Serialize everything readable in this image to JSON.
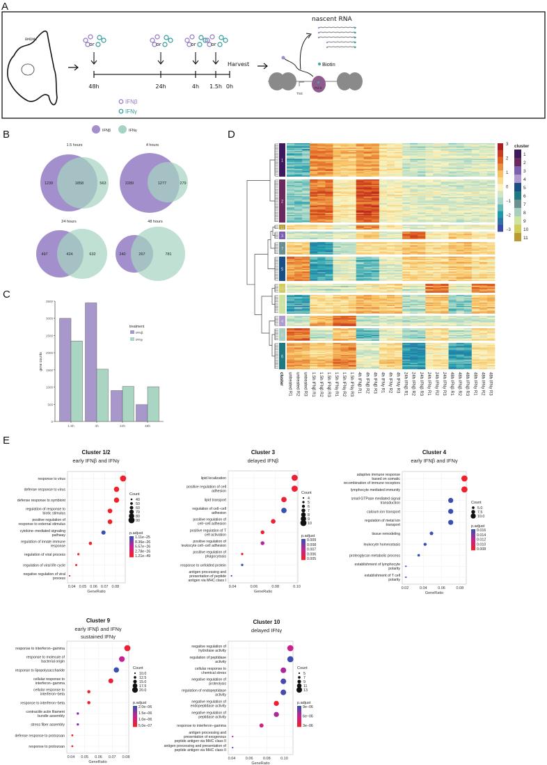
{
  "panel_labels": {
    "a": "A",
    "b": "B",
    "c": "C",
    "d": "D",
    "e": "E"
  },
  "panel_a": {
    "cell_label": "BMDMs",
    "or_label": "or",
    "timepoints": [
      "48h",
      "24h",
      "4h",
      "1.5h",
      "0h"
    ],
    "harvest": "Harvest",
    "legend_ifnb": "IFNβ",
    "legend_ifng": "IFNγ",
    "nascent_rna": "nascent RNA",
    "biotin": "Biotin",
    "tss": "TSS",
    "pol2": "Pol II",
    "colors": {
      "ifnb": "#8f78c0",
      "ifng": "#2a9a98"
    }
  },
  "panel_b": {
    "legend": [
      "IFNβ",
      "IFNγ"
    ],
    "colors": {
      "ifnb": "#a28fcb",
      "ifng": "#a6d4c0"
    },
    "venns": [
      {
        "title": "1.5 hours",
        "only_ifnb": "1239",
        "shared": "1858",
        "only_ifng": "563"
      },
      {
        "title": "4 hours",
        "only_ifnb": "2289",
        "shared": "1277",
        "only_ifng": "279"
      },
      {
        "title": "24 hours",
        "only_ifnb": "497",
        "shared": "424",
        "only_ifng": "632"
      },
      {
        "title": "48 hours",
        "only_ifnb": "240",
        "shared": "267",
        "only_ifng": "781"
      }
    ]
  },
  "chart_data": [
    {
      "type": "bar",
      "panel": "C",
      "categories": [
        "1.5h",
        "4h",
        "24h",
        "48h"
      ],
      "series": [
        {
          "name": "IFNβ",
          "values": [
            3000,
            3450,
            900,
            490
          ],
          "color": "#a897cb"
        },
        {
          "name": "IFNγ",
          "values": [
            2340,
            1520,
            1020,
            1010
          ],
          "color": "#a9d5c2"
        }
      ],
      "ylabel": "gene counts",
      "xlabel": "",
      "ylim": [
        0,
        3500
      ],
      "yticks": [
        0,
        500,
        1000,
        1500,
        2000,
        2500,
        3000,
        3500
      ],
      "legend_title": "treatment",
      "legend_placement": "right"
    },
    {
      "type": "heatmap",
      "panel": "D",
      "columns": [
        "untreated R1",
        "untreated R2",
        "untreated R3",
        "1.5h IFNβ R1",
        "1.5h IFNβ R2",
        "1.5h IFNβ R3",
        "1.5h IFNγ R1",
        "1.5h IFNγ R2",
        "1.5h IFNγ R3",
        "4h IFNβ R1",
        "4h IFNβ R2",
        "4h IFNβ R3",
        "4h IFNγ R1",
        "4h IFNγ R2",
        "4h IFNγ R3",
        "24h IFNβ R1",
        "24h IFNβ R2",
        "24h IFNβ R3",
        "24h IFNγ R1",
        "24h IFNγ R2",
        "24h IFNγ R3",
        "48h IFNβ R1",
        "48h IFNβ R2",
        "48h IFNβ R3",
        "48h IFNγ R1",
        "48h IFNγ R2",
        "48h IFNγ R3"
      ],
      "cluster_axis_label": "cluster",
      "groups": [
        "untreated",
        "1.5h IFNβ",
        "1.5h IFNγ",
        "4h IFNβ",
        "4h IFNγ",
        "24h IFNβ",
        "24h IFNγ",
        "48h IFNβ",
        "48h IFNγ"
      ],
      "row_cluster_order": [
        "1",
        "2",
        "11",
        "3",
        "7",
        "5",
        "10",
        "9",
        "4",
        "8",
        "6"
      ],
      "cluster_rows_relative": {
        "1": 48,
        "2": 62,
        "11": 7,
        "3": 11,
        "7": 18,
        "5": 35,
        "10": 13,
        "9": 27,
        "4": 15,
        "8": 18,
        "6": 38
      },
      "cluster_profiles": {
        "1": [
          -1.5,
          1.5,
          0.8,
          1.2,
          0.2,
          -0.6,
          -0.3,
          -0.6,
          -0.4
        ],
        "2": [
          -1.2,
          1.8,
          0.2,
          2.2,
          0.0,
          -0.3,
          -0.3,
          -0.4,
          -0.4
        ],
        "11": [
          0.5,
          0.3,
          -0.5,
          1.5,
          0.0,
          -0.5,
          -0.3,
          -0.2,
          -0.3
        ],
        "3": [
          -0.5,
          -0.5,
          -0.3,
          0.8,
          -0.3,
          2.0,
          0.2,
          0.8,
          0.3
        ],
        "7": [
          0.6,
          -2.2,
          -1.0,
          0.3,
          0.3,
          0.8,
          0.3,
          0.8,
          0.4
        ],
        "5": [
          1.5,
          -1.8,
          -0.3,
          -1.5,
          -0.3,
          0.6,
          0.4,
          0.8,
          0.4
        ],
        "10": [
          -0.5,
          -0.6,
          -0.6,
          0.0,
          0.3,
          -0.5,
          1.5,
          -0.4,
          1.5
        ],
        "9": [
          -1.8,
          0.4,
          0.6,
          1.0,
          0.8,
          -0.8,
          0.8,
          -1.2,
          0.8
        ],
        "4": [
          -0.6,
          1.2,
          2.0,
          -0.5,
          -0.3,
          -0.4,
          -0.3,
          -0.4,
          -0.3
        ],
        "8": [
          1.8,
          -0.6,
          0.8,
          -1.5,
          -0.3,
          -1.0,
          0.3,
          -0.6,
          0.3
        ],
        "6": [
          1.2,
          0.8,
          1.5,
          -0.3,
          0.6,
          -2.0,
          0.2,
          -1.8,
          0.4
        ]
      },
      "scale_ticks": [
        "3",
        "2",
        "1",
        "0",
        "−1",
        "−2",
        "−3"
      ],
      "scale_range": [
        -3,
        3
      ],
      "scale_colors": [
        "#3b4ba8",
        "#1a9aaa",
        "#a8d8c8",
        "#fbf4c0",
        "#f7c060",
        "#e06020",
        "#b01a20"
      ],
      "cluster_legend_title": "cluster",
      "clusters": [
        {
          "id": "1",
          "color": "#3d1a5c"
        },
        {
          "id": "2",
          "color": "#6b2a5e"
        },
        {
          "id": "3",
          "color": "#7b5fb0"
        },
        {
          "id": "4",
          "color": "#b09bd0"
        },
        {
          "id": "5",
          "color": "#1a4f85"
        },
        {
          "id": "6",
          "color": "#1e7a80"
        },
        {
          "id": "7",
          "color": "#6e8f90"
        },
        {
          "id": "8",
          "color": "#a8d0c0"
        },
        {
          "id": "9",
          "color": "#cce4a0"
        },
        {
          "id": "10",
          "color": "#d2cc5a"
        },
        {
          "id": "11",
          "color": "#b89a30"
        }
      ]
    },
    {
      "type": "scatter",
      "panel": "E",
      "title": "Cluster 1/2",
      "subtitle": [
        "early IFNβ and IFNγ"
      ],
      "xlabel": "GeneRatio",
      "xlim": [
        0.036,
        0.089
      ],
      "xticks": [
        "0.04",
        "0.05",
        "0.06",
        "0.07",
        "0.08"
      ],
      "terms": [
        "response to virus",
        "defense response to virus",
        "defense response to symbiont",
        "regulation of response to\nbiotic stimulus",
        "positive regulation of\nresponse to external stimulus",
        "cytokine−mediated signaling\npathway",
        "regulation of innate immune\nresponse",
        "regulation of viral process",
        "regulation of viral life cycle",
        "negative regulation of viral\nprocess"
      ],
      "gene_ratio": [
        0.087,
        0.081,
        0.081,
        0.075,
        0.075,
        0.069,
        0.057,
        0.046,
        0.044,
        0.038
      ],
      "count": [
        90,
        80,
        80,
        73,
        73,
        68,
        57,
        45,
        43,
        37
      ],
      "padj_level": [
        0,
        0,
        0,
        0,
        0,
        1,
        0.02,
        0,
        0,
        0
      ],
      "count_legend": {
        "title": "Count",
        "values": [
          "40",
          "50",
          "60",
          "70",
          "80",
          "90"
        ],
        "range": [
          37,
          90
        ]
      },
      "padj_legend": {
        "title": "p.adjust",
        "labels": [
          "1.11e−25",
          "8.36e−26",
          "5.57e−26",
          "2.78e−26",
          "1.21e−49"
        ]
      }
    },
    {
      "type": "scatter",
      "panel": "E",
      "title": "Cluster 3",
      "subtitle": [
        "delayed IFNβ"
      ],
      "xlabel": "GeneRatio",
      "xlim": [
        0.036,
        0.101
      ],
      "xticks": [
        "0.04",
        "0.06",
        "0.08",
        "0.10"
      ],
      "terms": [
        "lipid localization",
        "positive regulation of cell\nadhesion",
        "lipid transport",
        "regulation of cell−cell\nadhesion",
        "positive regulation of\ncell−cell adhesion",
        "positive regulation of T\ncell activation",
        "positive regulation of\nleukocyte cell−cell adhesion",
        "positive regulation of\nphagocytosis",
        "response to unfolded protein",
        "antigen processing and\npresentation of peptide\nantigen via MHC class I"
      ],
      "gene_ratio": [
        0.098,
        0.098,
        0.088,
        0.088,
        0.078,
        0.068,
        0.068,
        0.049,
        0.049,
        0.039
      ],
      "count": [
        10,
        10,
        9,
        9,
        8,
        7,
        7,
        5,
        5,
        4
      ],
      "padj_level": [
        0.05,
        0.05,
        0.05,
        1,
        0.05,
        0.05,
        0.55,
        0.05,
        1,
        1
      ],
      "count_legend": {
        "title": "Count",
        "values": [
          "4",
          "5",
          "6",
          "7",
          "8",
          "9",
          "10"
        ],
        "range": [
          4,
          10
        ]
      },
      "padj_legend": {
        "title": "p.adjust",
        "labels": [
          "0.009",
          "0.008",
          "0.007",
          "0.006",
          "0.005"
        ]
      }
    },
    {
      "type": "scatter",
      "panel": "E",
      "title": "Cluster 4",
      "subtitle": [
        "early IFNβ and IFNγ"
      ],
      "xlabel": "GeneRatio",
      "xlim": [
        0.017,
        0.087
      ],
      "xticks": [
        "0.02",
        "0.04",
        "0.06",
        "0.08"
      ],
      "terms": [
        "adaptive immune response\nbased on somatic\nrecombination of immune receptors",
        "lymphocyte mediated immunity",
        "small GTPase mediated signal\ntransduction",
        "calcium ion transport",
        "regulation of metal ion\ntransport",
        "tissue remodeling",
        "leukocyte homeostasis",
        "proteoglycan metabolic process",
        "establishment of lymphocyte\npolarity",
        "establishment of T cell\npolarity"
      ],
      "gene_ratio": [
        0.085,
        0.085,
        0.07,
        0.07,
        0.07,
        0.049,
        0.042,
        0.035,
        0.021,
        0.021
      ],
      "count": [
        12,
        12,
        10,
        10,
        10,
        7,
        6,
        5,
        3,
        3
      ],
      "padj_level": [
        0,
        0,
        1,
        1,
        1,
        1,
        1,
        1,
        1,
        1
      ],
      "count_legend": {
        "title": "Count",
        "values": [
          "5.0",
          "7.5",
          "10.0"
        ],
        "range": [
          3,
          12
        ]
      },
      "padj_legend": {
        "title": "p.adjust",
        "labels": [
          "0.016",
          "0.014",
          "0.012",
          "0.010",
          "0.008"
        ]
      }
    },
    {
      "type": "scatter",
      "panel": "E",
      "title": "Cluster 9",
      "subtitle": [
        "early IFNβ and IFNγ",
        "sustained IFNγ"
      ],
      "xlabel": "GeneRatio",
      "xlim": [
        0.037,
        0.082
      ],
      "xticks": [
        "0.04",
        "0.05",
        "0.06",
        "0.07",
        "0.08"
      ],
      "terms": [
        "response to interferon−gamma",
        "response to molecule of\nbacterial origin",
        "response to lipopolysaccharide",
        "cellular response to\ninterferon−gamma",
        "cellular response to\ninterferon−beta",
        "response to interferon−beta",
        "contractile actin filament\nbundle assembly",
        "stress fiber assembly",
        "defense response to protozoan",
        "response to protozoan"
      ],
      "gene_ratio": [
        0.081,
        0.077,
        0.073,
        0.069,
        0.053,
        0.053,
        0.045,
        0.045,
        0.041,
        0.041
      ],
      "count": [
        21,
        20,
        19,
        18,
        14,
        14,
        12,
        12,
        11,
        11
      ],
      "padj_level": [
        0.05,
        0.5,
        1,
        0.05,
        0.05,
        0.05,
        0.75,
        0.75,
        0.05,
        0.05
      ],
      "count_legend": {
        "title": "Count",
        "values": [
          "10.0",
          "12.5",
          "15.0",
          "17.5",
          "20.0"
        ],
        "range": [
          10,
          21
        ]
      },
      "padj_legend": {
        "title": "p.adjust",
        "labels": [
          "2.0e−06",
          "1.5e−06",
          "1.0e−06",
          "5.0e−07"
        ]
      }
    },
    {
      "type": "scatter",
      "panel": "E",
      "title": "Cluster 10",
      "subtitle": [
        "delayed IFNγ"
      ],
      "xlabel": "GeneRatio",
      "xlim": [
        0.036,
        0.11
      ],
      "xticks": [
        "0.04",
        "0.06",
        "0.08",
        "0.10"
      ],
      "terms": [
        "negative regulation of\nhydrolase activity",
        "regulation of peptidase\nactivity",
        "cellular response to\nchemical stress",
        "negative regulation of\nproteolysis",
        "regulation of endopeptidase\nactivity",
        "negative regulation of\nendopeptidase activity",
        "negative regulation of\npeptidase activity",
        "response to interferon−gamma",
        "antigen processing and\npresentation of exogenous\npeptide antigen via MHC class II",
        "antigen processing and presentation of\npeptide antigen via MHC class II"
      ],
      "gene_ratio": [
        0.107,
        0.107,
        0.099,
        0.099,
        0.099,
        0.091,
        0.091,
        0.074,
        0.041,
        0.041
      ],
      "count": [
        14,
        14,
        13,
        13,
        13,
        12,
        12,
        10,
        5,
        5
      ],
      "padj_level": [
        0.45,
        1,
        0.6,
        0.95,
        0.95,
        0.02,
        0.6,
        0.4,
        0.55,
        0.95
      ],
      "count_legend": {
        "title": "Count",
        "values": [
          "5",
          "7",
          "9",
          "11",
          "13"
        ],
        "range": [
          5,
          14
        ]
      },
      "padj_legend": {
        "title": "p.adjust",
        "labels": [
          "9e−06",
          "6e−06",
          "3e−06"
        ]
      }
    }
  ]
}
